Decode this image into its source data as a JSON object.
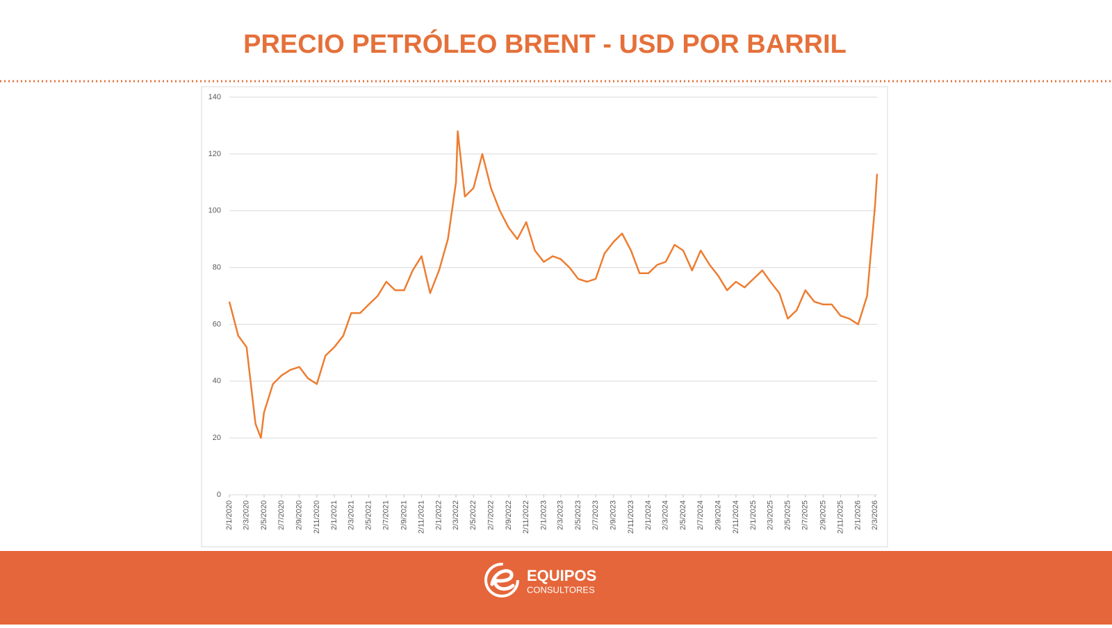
{
  "chart_data": {
    "type": "line",
    "title": "PRECIO PETRÓLEO BRENT - USD POR BARRIL",
    "color": "#ed7d31",
    "grid": true,
    "x": [
      "2/1/2020",
      "2/2/2020",
      "2/3/2020",
      "2/4/2020",
      "21/4/2020",
      "2/5/2020",
      "2/6/2020",
      "2/7/2020",
      "2/8/2020",
      "2/9/2020",
      "2/10/2020",
      "2/11/2020",
      "2/12/2020",
      "2/1/2021",
      "2/2/2021",
      "2/3/2021",
      "2/4/2021",
      "2/5/2021",
      "2/6/2021",
      "2/7/2021",
      "2/8/2021",
      "2/9/2021",
      "2/10/2021",
      "2/11/2021",
      "2/12/2021",
      "2/1/2022",
      "2/2/2022",
      "2/3/2022",
      "8/3/2022",
      "2/4/2022",
      "2/5/2022",
      "2/6/2022",
      "2/7/2022",
      "2/8/2022",
      "2/9/2022",
      "2/10/2022",
      "2/11/2022",
      "2/12/2022",
      "2/1/2023",
      "2/2/2023",
      "2/3/2023",
      "2/4/2023",
      "2/5/2023",
      "2/6/2023",
      "2/7/2023",
      "2/8/2023",
      "2/9/2023",
      "2/10/2023",
      "2/11/2023",
      "2/12/2023",
      "2/1/2024",
      "2/2/2024",
      "2/3/2024",
      "2/4/2024",
      "2/5/2024",
      "2/6/2024",
      "2/7/2024",
      "2/8/2024",
      "2/9/2024",
      "2/10/2024",
      "2/11/2024",
      "2/12/2024",
      "2/1/2025",
      "2/2/2025",
      "2/3/2025",
      "2/4/2025",
      "2/5/2025",
      "2/6/2025",
      "2/7/2025",
      "2/8/2025",
      "2/9/2025",
      "2/10/2025",
      "2/11/2025",
      "2/12/2025",
      "2/1/2026",
      "2/2/2026",
      "2/3/2026",
      "9/3/2026"
    ],
    "values": [
      68,
      56,
      52,
      25,
      20,
      29,
      39,
      42,
      44,
      45,
      41,
      39,
      49,
      52,
      56,
      64,
      64,
      67,
      70,
      75,
      72,
      72,
      79,
      84,
      71,
      79,
      90,
      110,
      128,
      105,
      108,
      120,
      108,
      100,
      94,
      90,
      96,
      86,
      82,
      84,
      83,
      80,
      76,
      75,
      76,
      85,
      89,
      92,
      86,
      78,
      78,
      81,
      82,
      88,
      86,
      79,
      86,
      81,
      77,
      72,
      75,
      73,
      76,
      79,
      75,
      71,
      62,
      65,
      72,
      68,
      67,
      67,
      63,
      62,
      60,
      70,
      102,
      113
    ],
    "xlim": [
      "2/1/2020",
      "9/3/2026"
    ],
    "xticks": [
      "2/1/2020",
      "2/3/2020",
      "2/5/2020",
      "2/7/2020",
      "2/9/2020",
      "2/11/2020",
      "2/1/2021",
      "2/3/2021",
      "2/5/2021",
      "2/7/2021",
      "2/9/2021",
      "2/11/2021",
      "2/1/2022",
      "2/3/2022",
      "2/5/2022",
      "2/7/2022",
      "2/9/2022",
      "2/11/2022",
      "2/1/2023",
      "2/3/2023",
      "2/5/2023",
      "2/7/2023",
      "2/9/2023",
      "2/11/2023",
      "2/1/2024",
      "2/3/2024",
      "2/5/2024",
      "2/7/2024",
      "2/9/2024",
      "2/11/2024",
      "2/1/2025",
      "2/3/2025",
      "2/5/2025",
      "2/7/2025",
      "2/9/2025",
      "2/11/2025",
      "2/1/2026",
      "2/3/2026"
    ],
    "ylim": [
      0,
      140
    ],
    "yticks": [
      0,
      20,
      40,
      60,
      80,
      100,
      120,
      140
    ]
  },
  "footer": {
    "brand": "EQUIPOS",
    "tagline": "CONSULTORES"
  }
}
